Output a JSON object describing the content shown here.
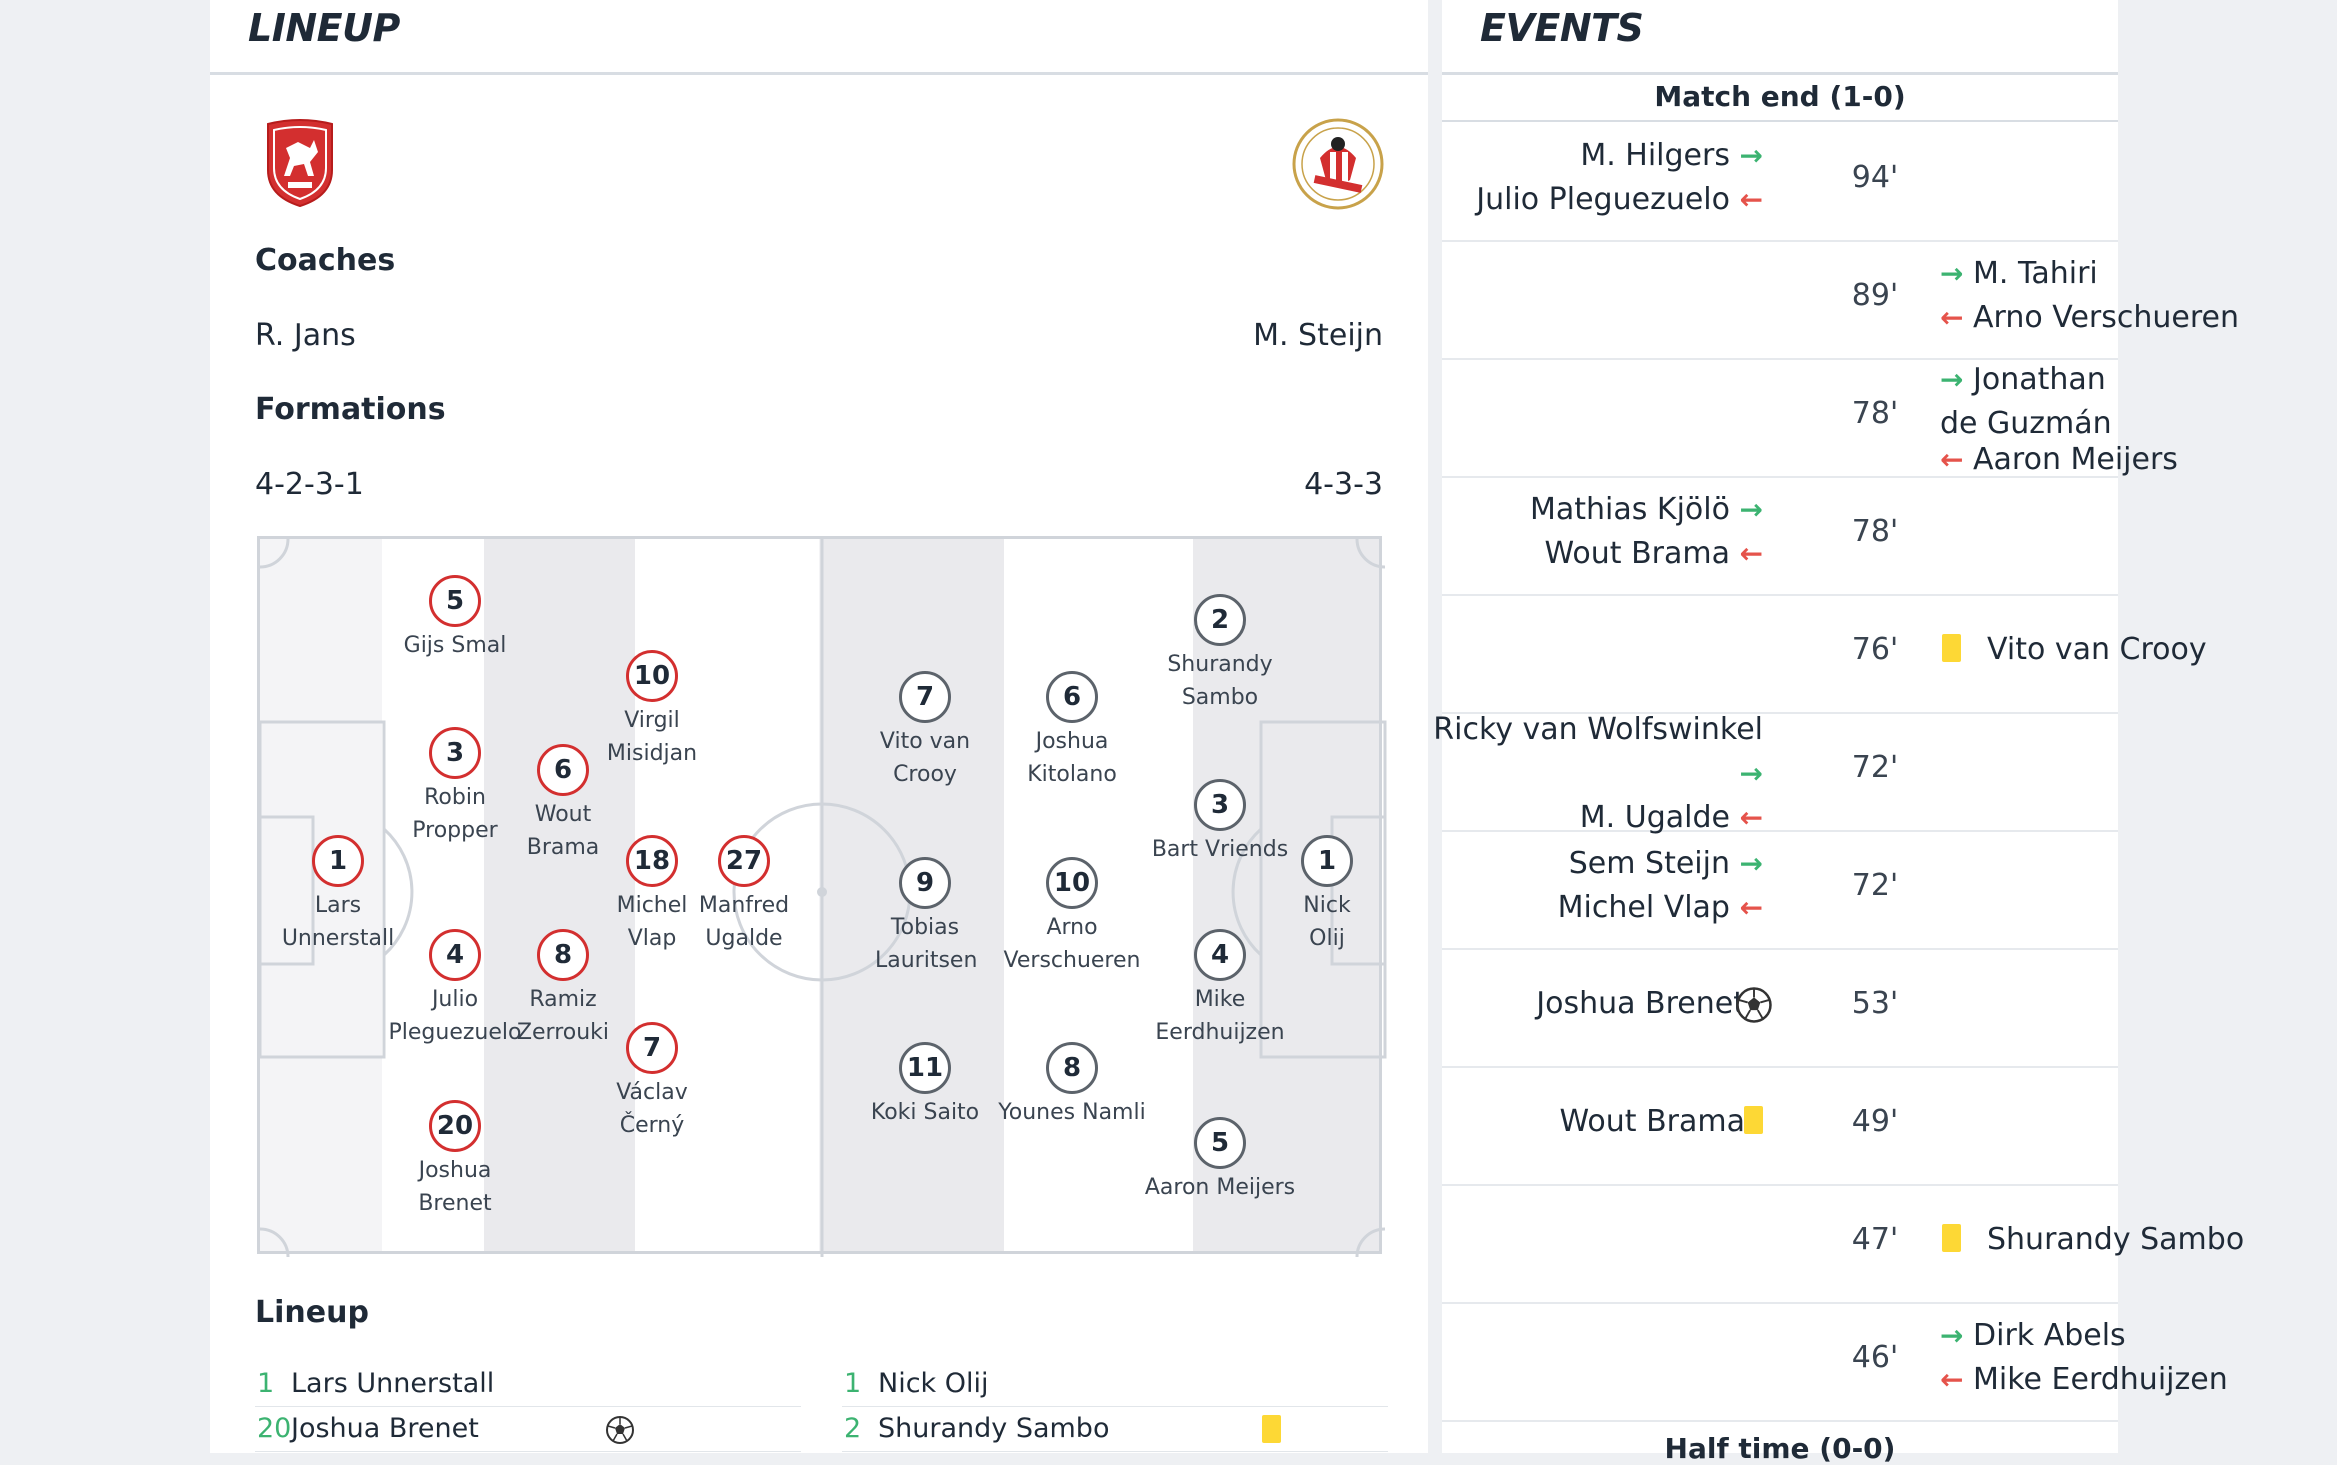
{
  "lineup": {
    "title": "LINEUP",
    "coaches_label": "Coaches",
    "home_coach": "R. Jans",
    "away_coach": "M. Steijn",
    "formations_label": "Formations",
    "home_formation": "4-2-3-1",
    "away_formation": "4-3-3",
    "home_players": [
      {
        "num": "5",
        "name": "Gijs Smal"
      },
      {
        "num": "10",
        "name": "Virgil Misidjan"
      },
      {
        "num": "3",
        "name": "Robin Propper"
      },
      {
        "num": "6",
        "name": "Wout Brama"
      },
      {
        "num": "1",
        "name": "Lars Unnerstall"
      },
      {
        "num": "18",
        "name": "Michel Vlap"
      },
      {
        "num": "27",
        "name": "Manfred Ugalde"
      },
      {
        "num": "4",
        "name": "Julio Pleguezuelo"
      },
      {
        "num": "8",
        "name": "Ramiz Zerrouki"
      },
      {
        "num": "7",
        "name": "Václav Černý"
      },
      {
        "num": "20",
        "name": "Joshua Brenet"
      }
    ],
    "away_players": [
      {
        "num": "7",
        "name": "Vito van Crooy"
      },
      {
        "num": "6",
        "name": "Joshua Kitolano"
      },
      {
        "num": "2",
        "name": "Shurandy Sambo"
      },
      {
        "num": "3",
        "name": "Bart Vriends"
      },
      {
        "num": "9",
        "name": "Tobias Lauritsen"
      },
      {
        "num": "10",
        "name": "Arno Verschueren"
      },
      {
        "num": "1",
        "name": "Nick Olij"
      },
      {
        "num": "4",
        "name": "Mike Eerdhuijzen"
      },
      {
        "num": "11",
        "name": "Koki Saito"
      },
      {
        "num": "8",
        "name": "Younes Namli"
      },
      {
        "num": "5",
        "name": "Aaron Meijers"
      }
    ],
    "list_label": "Lineup",
    "home_list": [
      {
        "num": "1",
        "name": "Lars Unnerstall"
      },
      {
        "num": "20",
        "name": "Joshua Brenet"
      }
    ],
    "away_list": [
      {
        "num": "1",
        "name": "Nick Olij"
      },
      {
        "num": "2",
        "name": "Shurandy Sambo"
      }
    ]
  },
  "events": {
    "title": "EVENTS",
    "match_end": "Match end (1-0)",
    "items": [
      {
        "minute": "94'",
        "in": "M. Hilgers",
        "out": "Julio Pleguezuelo"
      },
      {
        "minute": "89'",
        "in": "M. Tahiri",
        "out": "Arno Verschueren"
      },
      {
        "minute": "78'",
        "in": "Jonathan de Guzmán",
        "out": "Aaron Meijers"
      },
      {
        "minute": "78'",
        "in": "Mathias Kjölö",
        "out": "Wout Brama"
      },
      {
        "minute": "76'",
        "player": "Vito van Crooy"
      },
      {
        "minute": "72'",
        "in": "Ricky van Wolfswinkel",
        "out": "M. Ugalde"
      },
      {
        "minute": "72'",
        "in": "Sem Steijn",
        "out": "Michel Vlap"
      },
      {
        "minute": "53'",
        "player": "Joshua Brenet"
      },
      {
        "minute": "49'",
        "player": "Wout Brama"
      },
      {
        "minute": "47'",
        "player": "Shurandy Sambo"
      },
      {
        "minute": "46'",
        "in": "Dirk Abels",
        "out": "Mike Eerdhuijzen"
      }
    ],
    "half_time": "Half time (0-0)"
  },
  "colors": {
    "home": "#d32f2f",
    "away": "#5c636b",
    "sub_in": "#3cb371",
    "sub_out": "#e5534b",
    "yellow_card": "#fdd835"
  },
  "icons": {
    "sub_in": "arrow-right-icon",
    "sub_out": "arrow-left-icon",
    "goal": "football-icon",
    "card": "yellow-card-icon"
  }
}
